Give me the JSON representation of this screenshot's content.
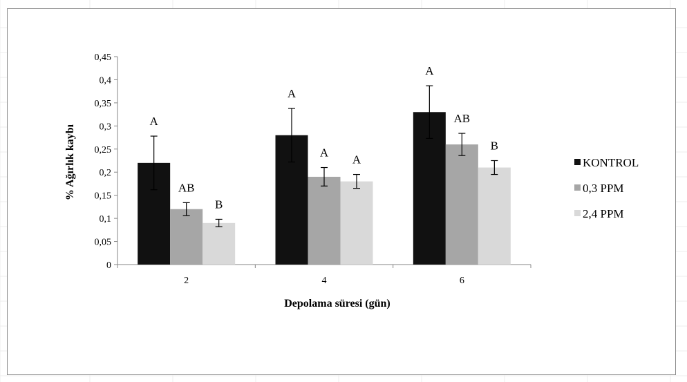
{
  "chart_data": {
    "type": "bar",
    "title": "",
    "xlabel": "Depolama süresi (gün)",
    "ylabel": "% Ağırlık kaybı",
    "ylim": [
      0,
      0.45
    ],
    "yticks": [
      "0",
      "0,05",
      "0,1",
      "0,15",
      "0,2",
      "0,25",
      "0,3",
      "0,35",
      "0,4",
      "0,45"
    ],
    "categories": [
      "2",
      "4",
      "6"
    ],
    "legend_position": "right",
    "grid": false,
    "series": [
      {
        "name": "KONTROL",
        "color": "#111111",
        "values": [
          0.22,
          0.28,
          0.33
        ],
        "errors": [
          0.058,
          0.058,
          0.057
        ],
        "labels": [
          "A",
          "A",
          "A"
        ]
      },
      {
        "name": "0,3 PPM",
        "color": "#a6a6a6",
        "values": [
          0.12,
          0.19,
          0.26
        ],
        "errors": [
          0.014,
          0.02,
          0.024
        ],
        "labels": [
          "AB",
          "A",
          "AB"
        ]
      },
      {
        "name": "2,4 PPM",
        "color": "#d9d9d9",
        "values": [
          0.09,
          0.18,
          0.21
        ],
        "errors": [
          0.008,
          0.015,
          0.015
        ],
        "labels": [
          "B",
          "A",
          "B"
        ]
      }
    ]
  }
}
